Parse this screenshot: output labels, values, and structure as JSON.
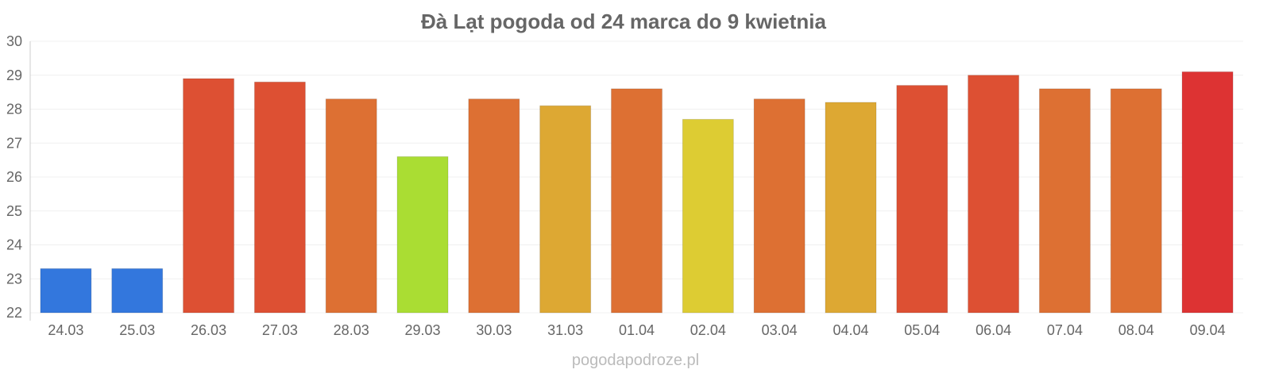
{
  "chart_data": {
    "type": "bar",
    "title": "Đà Lạt pogoda od 24 marca do 9 kwietnia",
    "xlabel": "",
    "ylabel": "",
    "ylim": [
      22,
      30
    ],
    "yticks": [
      "22",
      "23",
      "24",
      "25",
      "26",
      "27",
      "28",
      "29",
      "30"
    ],
    "grid": true,
    "categories": [
      "24.03",
      "25.03",
      "26.03",
      "27.03",
      "28.03",
      "29.03",
      "30.03",
      "31.03",
      "01.04",
      "02.04",
      "03.04",
      "04.04",
      "05.04",
      "06.04",
      "07.04",
      "08.04",
      "09.04"
    ],
    "values": [
      23.3,
      23.3,
      28.9,
      28.8,
      28.3,
      26.6,
      28.3,
      28.1,
      28.6,
      27.7,
      28.3,
      28.2,
      28.7,
      29.0,
      28.6,
      28.6,
      29.1
    ],
    "colors": [
      "#3377dd",
      "#3377dd",
      "#dd5033",
      "#dd5033",
      "#dd7033",
      "#aadd33",
      "#dd7033",
      "#dda833",
      "#dd7033",
      "#ddcc33",
      "#dd7033",
      "#dda833",
      "#dd5033",
      "#dd5033",
      "#dd7033",
      "#dd7033",
      "#dd3333"
    ],
    "credit": "pogodapodroze.pl"
  }
}
